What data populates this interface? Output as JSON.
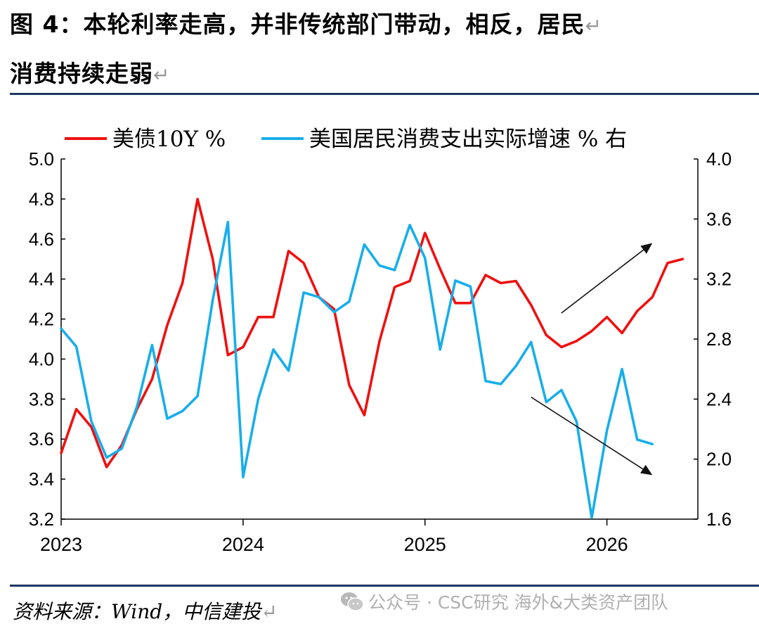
{
  "header": {
    "title_line_1": "图 4：本轮利率走高，并非传统部门带动，相反，居民",
    "title_line_2": "消费持续走弱",
    "return_mark": "↵"
  },
  "footer": {
    "source": "资料来源：Wind，中信建投",
    "watermark": "公众号 · CSC研究 海外&大类资产团队"
  },
  "colors": {
    "rate": "#ee1111",
    "consumption": "#18aeea",
    "rule": "#1f3864",
    "arrow": "#111111"
  },
  "chart_data": {
    "type": "line",
    "legend_position": "top",
    "grid": false,
    "x_ticks": [
      "2023",
      "2024",
      "2025",
      "2026"
    ],
    "x_range": [
      "2023-01",
      "2026-06"
    ],
    "y_left": {
      "range": [
        3.2,
        5.0
      ],
      "ticks": [
        "3.2",
        "3.4",
        "3.6",
        "3.8",
        "4.0",
        "4.2",
        "4.4",
        "4.6",
        "4.8",
        "5.0"
      ]
    },
    "y_right": {
      "range": [
        1.6,
        4.0
      ],
      "ticks": [
        "1.6",
        "2.0",
        "2.4",
        "2.8",
        "3.2",
        "3.6",
        "4.0"
      ],
      "label": "右"
    },
    "series": [
      {
        "name": "美债10Y %",
        "axis": "left",
        "color": "#ee1111",
        "x": [
          "2023-01",
          "2023-02",
          "2023-03",
          "2023-04",
          "2023-05",
          "2023-06",
          "2023-07",
          "2023-08",
          "2023-09",
          "2023-10",
          "2023-11",
          "2023-12",
          "2024-01",
          "2024-02",
          "2024-03",
          "2024-04",
          "2024-05",
          "2024-06",
          "2024-07",
          "2024-08",
          "2024-09",
          "2024-10",
          "2024-11",
          "2024-12",
          "2025-01",
          "2025-02",
          "2025-03",
          "2025-04",
          "2025-05",
          "2025-06",
          "2025-07",
          "2025-08",
          "2025-09",
          "2025-10",
          "2025-11",
          "2025-12",
          "2026-01",
          "2026-02",
          "2026-03",
          "2026-04",
          "2026-05",
          "2026-06"
        ],
        "values": [
          3.53,
          3.75,
          3.66,
          3.46,
          3.57,
          3.75,
          3.9,
          4.17,
          4.38,
          4.8,
          4.5,
          4.02,
          4.06,
          4.21,
          4.21,
          4.54,
          4.48,
          4.31,
          4.25,
          3.87,
          3.72,
          4.09,
          4.36,
          4.39,
          4.63,
          4.45,
          4.28,
          4.28,
          4.42,
          4.38,
          4.39,
          4.27,
          4.12,
          4.06,
          4.09,
          4.14,
          4.21,
          4.13,
          4.24,
          4.31,
          4.48,
          4.5
        ]
      },
      {
        "name": "美国居民消费支出实际增速 %",
        "axis": "right",
        "color": "#18aeea",
        "x": [
          "2023-01",
          "2023-02",
          "2023-03",
          "2023-04",
          "2023-05",
          "2023-06",
          "2023-07",
          "2023-08",
          "2023-09",
          "2023-10",
          "2023-11",
          "2023-12",
          "2024-01",
          "2024-02",
          "2024-03",
          "2024-04",
          "2024-05",
          "2024-06",
          "2024-07",
          "2024-08",
          "2024-09",
          "2024-10",
          "2024-11",
          "2024-12",
          "2025-01",
          "2025-02",
          "2025-03",
          "2025-04",
          "2025-05",
          "2025-06",
          "2025-07",
          "2025-08",
          "2025-09",
          "2025-10",
          "2025-11",
          "2025-12",
          "2026-01",
          "2026-02",
          "2026-03",
          "2026-04"
        ],
        "values": [
          2.87,
          2.75,
          2.25,
          2.01,
          2.07,
          2.35,
          2.76,
          2.27,
          2.32,
          2.42,
          3.06,
          3.58,
          1.88,
          2.4,
          2.73,
          2.59,
          3.11,
          3.08,
          2.98,
          3.05,
          3.43,
          3.29,
          3.26,
          3.56,
          3.34,
          2.73,
          3.19,
          3.15,
          2.52,
          2.5,
          2.62,
          2.78,
          2.38,
          2.46,
          2.25,
          1.61,
          2.19,
          2.6,
          2.13,
          2.1
        ]
      }
    ],
    "annotations": [
      {
        "type": "arrow",
        "axis": "left",
        "from": [
          "2025-10",
          4.23
        ],
        "to": [
          "2026-04",
          4.58
        ]
      },
      {
        "type": "arrow",
        "axis": "left",
        "from": [
          "2025-08",
          3.81
        ],
        "to": [
          "2026-04",
          3.42
        ]
      }
    ]
  }
}
